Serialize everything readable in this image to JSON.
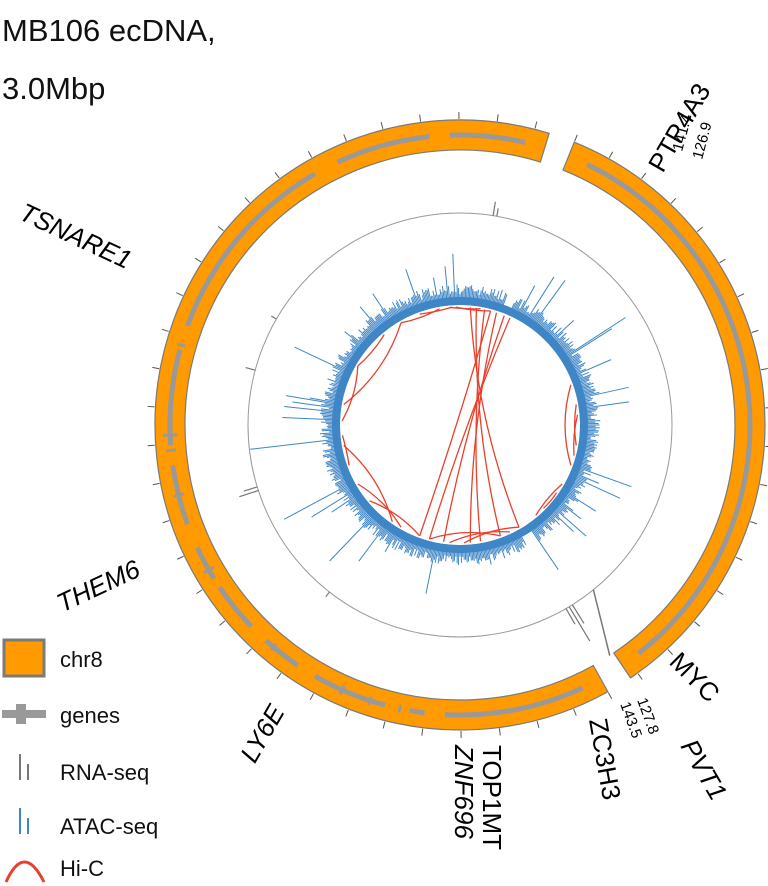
{
  "title": {
    "line1": "MB106 ecDNA,",
    "line2": "3.0Mbp"
  },
  "colors": {
    "segment": "#FF9A00",
    "segment_edge": "#7a7a7a",
    "genes": "#999999",
    "rna": "#777777",
    "atac": "#3f86c6",
    "hic": "#e8402a"
  },
  "segments": [
    {
      "name": "chr8",
      "start_label": "127.8",
      "end_label": "143.5"
    },
    {
      "name": "chr8",
      "start_label": "141.4",
      "end_label": "126.9"
    }
  ],
  "genes": [
    "PTP4A3",
    "TSNARE1",
    "THEM6",
    "LY6E",
    "TOP1MT",
    "ZNF696",
    "ZC3H3",
    "PVT1",
    "MYC"
  ],
  "legend": [
    {
      "label": "chr8",
      "icon": "orange-box-icon"
    },
    {
      "label": "genes",
      "icon": "gene-bar-icon"
    },
    {
      "label": "RNA-seq",
      "icon": "rna-bars-icon"
    },
    {
      "label": "ATAC-seq",
      "icon": "atac-bars-icon"
    },
    {
      "label": "Hi-C",
      "icon": "hic-arc-icon"
    }
  ]
}
